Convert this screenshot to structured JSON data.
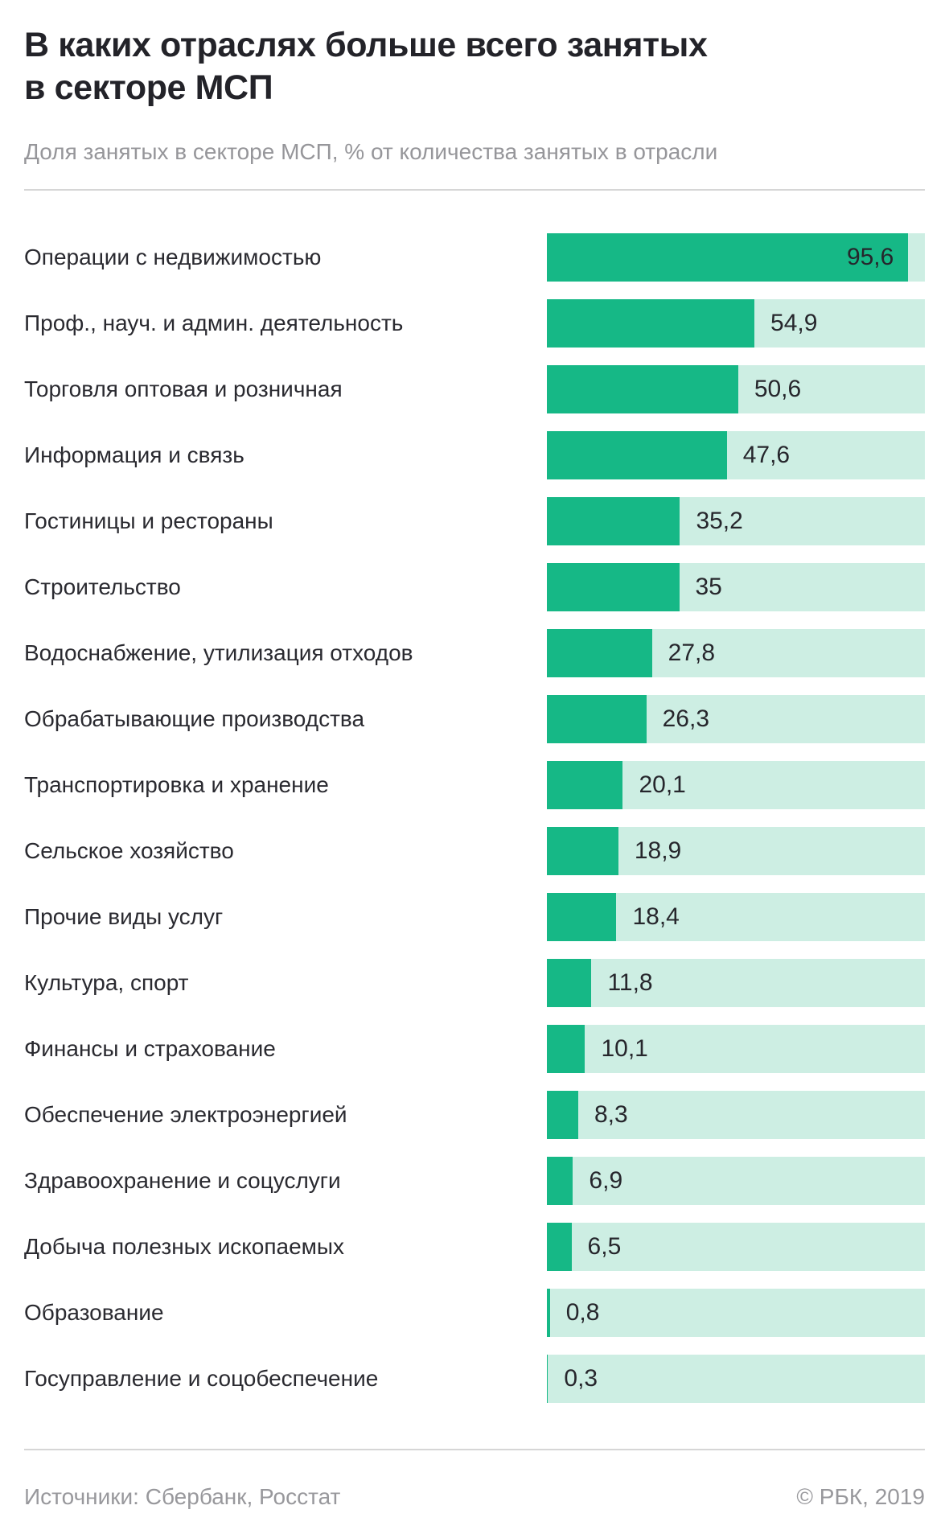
{
  "header": {
    "title_lines": [
      "В каких отраслях больше всего занятых",
      "в секторе МСП"
    ],
    "subtitle": "Доля занятых в секторе МСП, % от количества занятых в отрасли"
  },
  "chart_data": {
    "type": "bar",
    "orientation": "horizontal",
    "title": "В каких отраслях больше всего занятых в секторе МСП",
    "subtitle": "Доля занятых в секторе МСП, % от количества занятых в отрасли",
    "xlim": [
      0,
      100
    ],
    "grid": false,
    "legend": false,
    "bar_color": "#16b886",
    "track_color": "#cdeee3",
    "inside_label_threshold": 90,
    "categories": [
      "Операции с недвижимостью",
      "Проф., науч. и админ. деятельность",
      "Торговля оптовая и розничная",
      "Информация и связь",
      "Гостиницы и рестораны",
      "Строительство",
      "Водоснабжение, утилизация отходов",
      "Обрабатывающие производства",
      "Транспортировка и хранение",
      "Сельское хозяйство",
      "Прочие виды услуг",
      "Культура, спорт",
      "Финансы и страхование",
      "Обеспечение электроэнергией",
      "Здравоохранение и соцуслуги",
      "Добыча полезных ископаемых",
      "Образование",
      "Госуправление и соцобеспечение"
    ],
    "values": [
      95.6,
      54.9,
      50.6,
      47.6,
      35.2,
      35,
      27.8,
      26.3,
      20.1,
      18.9,
      18.4,
      11.8,
      10.1,
      8.3,
      6.9,
      6.5,
      0.8,
      0.3
    ],
    "value_labels": [
      "95,6",
      "54,9",
      "50,6",
      "47,6",
      "35,2",
      "35",
      "27,8",
      "26,3",
      "20,1",
      "18,9",
      "18,4",
      "11,8",
      "10,1",
      "8,3",
      "6,9",
      "6,5",
      "0,8",
      "0,3"
    ]
  },
  "footer": {
    "sources": "Источники: Сбербанк, Росстат",
    "copyright": "© РБК, 2019"
  }
}
